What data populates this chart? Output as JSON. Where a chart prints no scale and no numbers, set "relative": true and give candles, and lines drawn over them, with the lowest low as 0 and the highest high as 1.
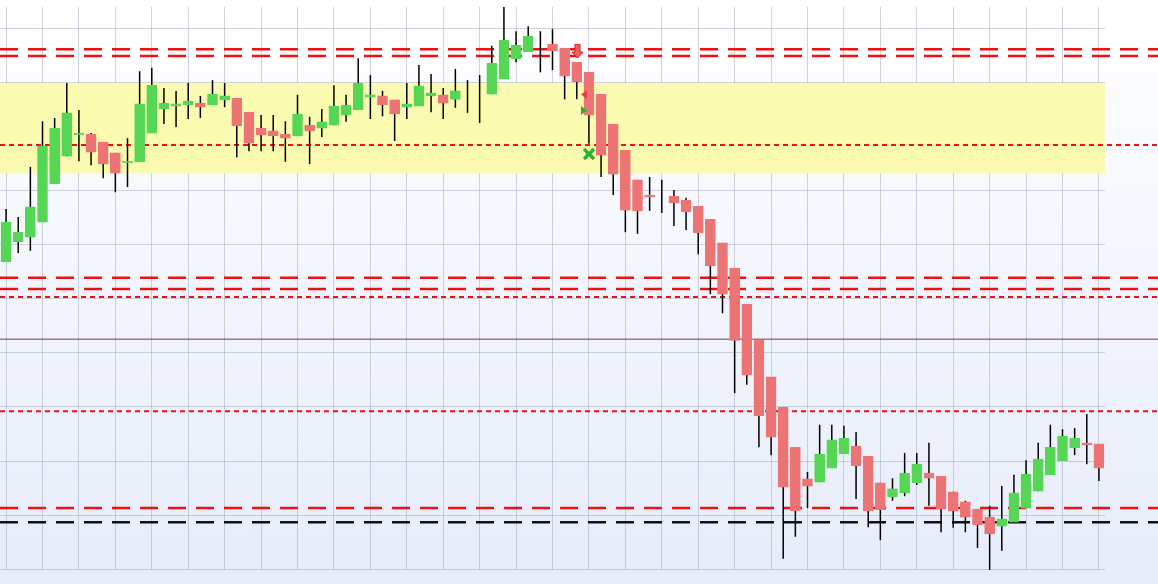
{
  "chart_data": {
    "type": "candlestick",
    "relative": true,
    "grid": true,
    "categories": [
      null,
      null,
      null,
      null,
      null,
      null,
      null,
      null,
      null,
      null,
      null,
      null,
      null,
      null,
      null,
      null,
      null,
      null,
      null,
      null,
      null,
      null,
      null,
      null,
      null,
      null,
      null,
      null,
      null,
      null,
      null,
      null,
      null,
      null,
      null,
      null,
      null,
      null,
      null,
      null,
      null,
      null,
      null,
      null,
      null,
      null,
      null,
      null,
      null,
      null,
      null,
      null,
      null,
      null,
      null,
      null,
      null,
      null,
      null,
      null,
      null,
      null,
      null,
      null,
      null,
      null,
      null,
      null,
      null,
      null,
      null,
      null,
      null,
      null,
      null,
      null,
      null,
      null,
      null,
      null,
      null,
      null,
      null,
      null,
      null,
      null,
      null,
      null,
      null,
      null,
      null
    ],
    "ohlc": [
      [
        0.547,
        0.641,
        0.547,
        0.618
      ],
      [
        0.583,
        0.627,
        0.563,
        0.6
      ],
      [
        0.591,
        0.716,
        0.567,
        0.645
      ],
      [
        0.618,
        0.797,
        0.618,
        0.753
      ],
      [
        0.686,
        0.803,
        0.686,
        0.785
      ],
      [
        0.735,
        0.865,
        0.735,
        0.812
      ],
      [
        0.773,
        0.817,
        0.726,
        0.776
      ],
      [
        0.774,
        0.776,
        0.719,
        0.742
      ],
      [
        0.76,
        0.76,
        0.696,
        0.721
      ],
      [
        0.741,
        0.741,
        0.671,
        0.705
      ],
      [
        0.723,
        0.767,
        0.68,
        0.726
      ],
      [
        0.725,
        0.886,
        0.725,
        0.828
      ],
      [
        0.776,
        0.892,
        0.776,
        0.861
      ],
      [
        0.819,
        0.856,
        0.792,
        0.829
      ],
      [
        0.824,
        0.851,
        0.787,
        0.828
      ],
      [
        0.826,
        0.865,
        0.801,
        0.833
      ],
      [
        0.829,
        0.842,
        0.803,
        0.822
      ],
      [
        0.826,
        0.87,
        0.826,
        0.845
      ],
      [
        0.835,
        0.865,
        0.822,
        0.842
      ],
      [
        0.838,
        0.838,
        0.733,
        0.789
      ],
      [
        0.813,
        0.813,
        0.744,
        0.758
      ],
      [
        0.785,
        0.808,
        0.744,
        0.773
      ],
      [
        0.78,
        0.808,
        0.744,
        0.771
      ],
      [
        0.774,
        0.797,
        0.725,
        0.767
      ],
      [
        0.771,
        0.844,
        0.771,
        0.81
      ],
      [
        0.79,
        0.805,
        0.721,
        0.78
      ],
      [
        0.785,
        0.819,
        0.769,
        0.796
      ],
      [
        0.79,
        0.861,
        0.79,
        0.824
      ],
      [
        0.808,
        0.844,
        0.796,
        0.826
      ],
      [
        0.817,
        0.909,
        0.817,
        0.865
      ],
      [
        0.84,
        0.879,
        0.801,
        0.844
      ],
      [
        0.842,
        0.851,
        0.806,
        0.826
      ],
      [
        0.835,
        0.835,
        0.762,
        0.81
      ],
      [
        0.822,
        0.865,
        0.801,
        0.828
      ],
      [
        0.824,
        0.897,
        0.824,
        0.86
      ],
      [
        0.842,
        0.881,
        0.813,
        0.847
      ],
      [
        0.844,
        0.856,
        0.801,
        0.829
      ],
      [
        0.836,
        0.89,
        0.821,
        0.851
      ],
      [
        0.844,
        0.87,
        0.812,
        0.844
      ],
      [
        0.844,
        0.879,
        0.794,
        0.844
      ],
      [
        0.845,
        0.931,
        0.845,
        0.9
      ],
      [
        0.872,
        1,
        0.872,
        0.941
      ],
      [
        0.908,
        0.957,
        0.902,
        0.932
      ],
      [
        0.92,
        0.966,
        0.92,
        0.948
      ],
      [
        0.934,
        0.957,
        0.884,
        0.934
      ],
      [
        0.934,
        0.961,
        0.888,
        0.922
      ],
      [
        0.927,
        0.927,
        0.836,
        0.877
      ],
      [
        0.902,
        0.902,
        0.836,
        0.867
      ],
      [
        0.884,
        0.884,
        0.757,
        0.808
      ],
      [
        0.845,
        0.845,
        0.698,
        0.737
      ],
      [
        0.792,
        0.792,
        0.666,
        0.703
      ],
      [
        0.746,
        0.746,
        0.6,
        0.639
      ],
      [
        0.693,
        0.693,
        0.597,
        0.638
      ],
      [
        0.666,
        0.698,
        0.638,
        0.662
      ],
      [
        0.662,
        0.693,
        0.634,
        0.662
      ],
      [
        0.664,
        0.675,
        0.611,
        0.652
      ],
      [
        0.657,
        0.661,
        0.604,
        0.636
      ],
      [
        0.646,
        0.646,
        0.561,
        0.599
      ],
      [
        0.623,
        0.623,
        0.49,
        0.54
      ],
      [
        0.581,
        0.581,
        0.456,
        0.49
      ],
      [
        0.536,
        0.536,
        0.314,
        0.408
      ],
      [
        0.472,
        0.472,
        0.329,
        0.346
      ],
      [
        0.408,
        0.408,
        0.218,
        0.274
      ],
      [
        0.343,
        0.343,
        0.204,
        0.236
      ],
      [
        0.289,
        0.289,
        0.02,
        0.147
      ],
      [
        0.218,
        0.218,
        0.059,
        0.105
      ],
      [
        0.162,
        0.174,
        0.11,
        0.149
      ],
      [
        0.156,
        0.258,
        0.156,
        0.206
      ],
      [
        0.181,
        0.258,
        0.181,
        0.231
      ],
      [
        0.206,
        0.256,
        0.206,
        0.234
      ],
      [
        0.22,
        0.245,
        0.126,
        0.185
      ],
      [
        0.202,
        0.202,
        0.076,
        0.105
      ],
      [
        0.155,
        0.155,
        0.053,
        0.107
      ],
      [
        0.13,
        0.163,
        0.123,
        0.144
      ],
      [
        0.137,
        0.208,
        0.131,
        0.172
      ],
      [
        0.155,
        0.208,
        0.151,
        0.188
      ],
      [
        0.172,
        0.226,
        0.114,
        0.163
      ],
      [
        0.167,
        0.167,
        0.067,
        0.108
      ],
      [
        0.139,
        0.139,
        0.075,
        0.105
      ],
      [
        0.121,
        0.123,
        0.067,
        0.094
      ],
      [
        0.108,
        0.108,
        0.039,
        0.08
      ],
      [
        0.094,
        0.114,
        0,
        0.064
      ],
      [
        0.078,
        0.149,
        0.034,
        0.091
      ],
      [
        0.085,
        0.169,
        0.085,
        0.137
      ],
      [
        0.11,
        0.195,
        0.11,
        0.17
      ],
      [
        0.14,
        0.226,
        0.14,
        0.197
      ],
      [
        0.169,
        0.258,
        0.169,
        0.218
      ],
      [
        0.194,
        0.25,
        0.194,
        0.238
      ],
      [
        0.217,
        0.252,
        0.204,
        0.234
      ],
      [
        0.226,
        0.277,
        0.188,
        0.222
      ],
      [
        0.224,
        0.224,
        0.158,
        0.181
      ]
    ],
    "colors": [
      "#55d655",
      "#55d655",
      "#55d655",
      "#55d655",
      "#55d655",
      "#55d655",
      "#55d655",
      "#ec7474",
      "#ec7474",
      "#ec7474",
      "#55d655",
      "#55d655",
      "#55d655",
      "#55d655",
      "#55d655",
      "#55d655",
      "#ec7474",
      "#55d655",
      "#55d655",
      "#ec7474",
      "#ec7474",
      "#ec7474",
      "#ec7474",
      "#ec7474",
      "#55d655",
      "#ec7474",
      "#55d655",
      "#55d655",
      "#55d655",
      "#55d655",
      "#55d655",
      "#ec7474",
      "#ec7474",
      "#55d655",
      "#55d655",
      "#55d655",
      "#ec7474",
      "#55d655",
      "#000000",
      "#000000",
      "#55d655",
      "#55d655",
      "#55d655",
      "#55d655",
      "#000000",
      "#ec7474",
      "#ec7474",
      "#ec7474",
      "#ec7474",
      "#ec7474",
      "#ec7474",
      "#ec7474",
      "#ec7474",
      "#ec7474",
      "#000000",
      "#ec7474",
      "#ec7474",
      "#ec7474",
      "#ec7474",
      "#ec7474",
      "#ec7474",
      "#ec7474",
      "#ec7474",
      "#ec7474",
      "#ec7474",
      "#ec7474",
      "#ec7474",
      "#55d655",
      "#55d655",
      "#55d655",
      "#ec7474",
      "#ec7474",
      "#ec7474",
      "#55d655",
      "#55d655",
      "#55d655",
      "#ec7474",
      "#ec7474",
      "#ec7474",
      "#ec7474",
      "#ec7474",
      "#ec7474",
      "#55d655",
      "#55d655",
      "#55d655",
      "#55d655",
      "#55d655",
      "#55d655",
      "#55d655",
      "#ec7474",
      "#ec7474"
    ],
    "ref_lines": [
      {
        "axis": "y",
        "value": 0.925,
        "color": "#ee1111",
        "line_style": "dashed"
      },
      {
        "axis": "y",
        "value": 0.913,
        "color": "#ee1111",
        "line_style": "dashed"
      },
      {
        "axis": "y",
        "value": 0.755,
        "color": "#ee1111",
        "line_style": "dotted"
      },
      {
        "axis": "y",
        "value": 0.519,
        "color": "#ee1111",
        "line_style": "dashed"
      },
      {
        "axis": "y",
        "value": 0.499,
        "color": "#ee1111",
        "line_style": "dashed"
      },
      {
        "axis": "y",
        "value": 0.485,
        "color": "#ee1111",
        "line_style": "dotted"
      },
      {
        "axis": "y",
        "value": 0.41,
        "color": "#7a3a3a",
        "line_style": "solid"
      },
      {
        "axis": "y",
        "value": 0.282,
        "color": "#ee1111",
        "line_style": "dotted"
      },
      {
        "axis": "y",
        "value": 0.11,
        "color": "#ee1111",
        "line_style": "dashed"
      },
      {
        "axis": "y",
        "value": 0.085,
        "color": "#111111",
        "line_style": "dashed"
      }
    ],
    "bands": [
      {
        "axis": "y",
        "from": 0.705,
        "to": 0.865,
        "color": "#fafab0"
      }
    ]
  }
}
